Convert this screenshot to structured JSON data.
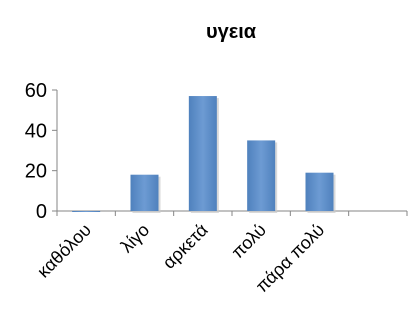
{
  "chart_data": {
    "type": "bar",
    "title": "υγεια",
    "xlabel": "",
    "ylabel": "",
    "categories": [
      "καθόλου",
      "λίγο",
      "αρκετά",
      "πολύ",
      "πάρα πολύ"
    ],
    "values": [
      0,
      18,
      57,
      35,
      19
    ],
    "ylim": [
      0,
      60
    ],
    "yticks": [
      0,
      20,
      40,
      60
    ],
    "grid": false,
    "legend": "none",
    "colors": {
      "bar": "#4f81bd",
      "bar_highlight": "#6d9bd3",
      "bar_shadow": "#c9c9c9",
      "axis": "#868686"
    }
  }
}
